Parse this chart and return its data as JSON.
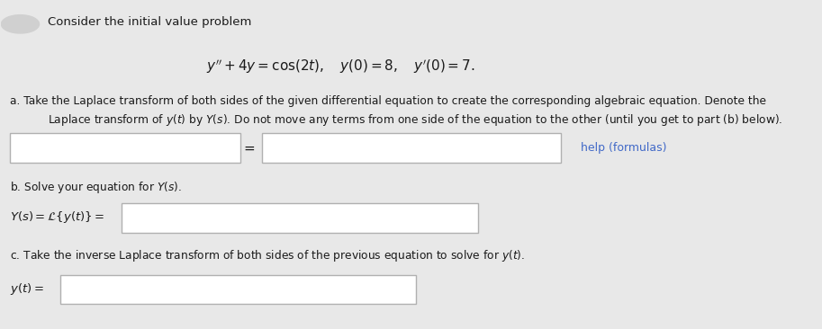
{
  "bg_color": "#e8e8e8",
  "box_bg": "#ffffff",
  "box_border": "#b0b0b0",
  "text_color": "#1a1a1a",
  "link_color": "#4169c8",
  "title": "Consider the initial value problem",
  "equation": "$y'' + 4y = \\cos(2t), \\quad y(0) = 8, \\quad y'(0) = 7.$",
  "part_a_text1": "a. Take the Laplace transform of both sides of the given differential equation to create the corresponding algebraic equation. Denote the",
  "part_a_text2": "Laplace transform of $y(t)$ by $Y(s)$. Do not move any terms from one side of the equation to the other (until you get to part (b) below).",
  "part_b_text": "b. Solve your equation for $Y(s)$.",
  "part_b_label": "$Y(s) = \\mathcal{L}\\{y(t)\\} = $",
  "part_c_text": "c. Take the inverse Laplace transform of both sides of the previous equation to solve for $y(t)$.",
  "part_c_label": "$y(t) = $",
  "help_text": "help (formulas)",
  "circle_color": "#d0d0d0"
}
